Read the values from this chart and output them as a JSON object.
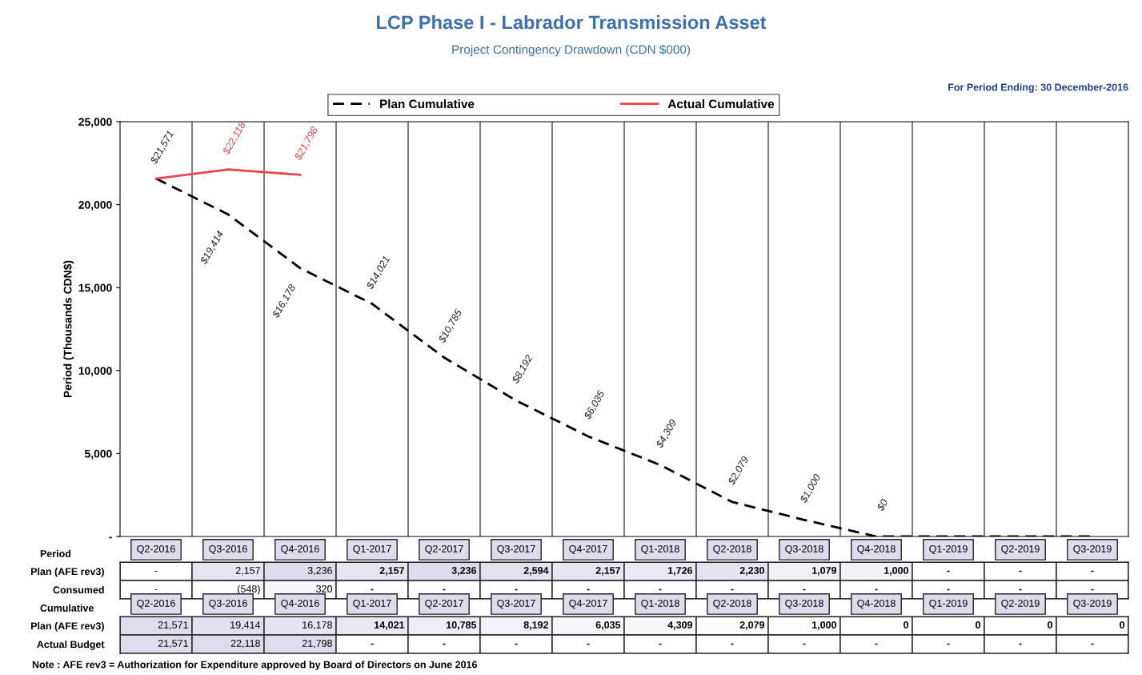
{
  "chart_data": [
    {
      "type": "line",
      "title": "LCP Phase I - Labrador Transmission Asset",
      "subtitle": "Project Contingency Drawdown (CDN $000)",
      "ylabel": "Period (Thousands CDN$)",
      "annotations": [
        "For Period Ending: 30 December-2016",
        "Note : AFE rev3 = Authorization for Expenditure approved by Board of Directors on June 2016"
      ],
      "categories": [
        null,
        null,
        null,
        null,
        null,
        null,
        null,
        null,
        null,
        null,
        null,
        null,
        null,
        null
      ],
      "series": [
        {
          "name": "Plan Cumulative",
          "color": "#000000",
          "line_style": "dashed",
          "values": [
            21571,
            19414,
            16178,
            14021,
            10785,
            8192,
            6035,
            4309,
            2079,
            1000,
            0,
            0,
            0,
            0
          ],
          "value_labels": [
            "$21,571",
            "$19,414",
            "$16,178",
            "$14,021",
            "$10,785",
            "$8,192",
            "$6,035",
            "$4,309",
            "$2,079",
            "$1,000",
            "$0",
            null,
            null,
            null
          ]
        },
        {
          "name": "Actual Cumulative",
          "color": "#f0404a",
          "line_style": "solid",
          "values": [
            21571,
            22118,
            21798,
            null,
            null,
            null,
            null,
            null,
            null,
            null,
            null,
            null,
            null,
            null
          ],
          "value_labels": [
            null,
            "$22,118",
            "$21,798",
            null,
            null,
            null,
            null,
            null,
            null,
            null,
            null,
            null,
            null,
            null
          ]
        }
      ],
      "ylim": [
        0,
        25000
      ],
      "yticks": [
        {
          "value": 0,
          "label": "-"
        },
        {
          "value": 5000,
          "label": "5,000"
        },
        {
          "value": 10000,
          "label": "10,000"
        },
        {
          "value": 15000,
          "label": "15,000"
        },
        {
          "value": 20000,
          "label": "20,000"
        },
        {
          "value": 25000,
          "label": "25,000"
        }
      ],
      "grid": "x",
      "legend": "top",
      "marker": "none",
      "tick_labels": "y"
    },
    {
      "type": "heatmap",
      "title": "Period",
      "categories": [
        "Q2-2016",
        "Q3-2016",
        "Q4-2016",
        "Q1-2017",
        "Q2-2017",
        "Q3-2017",
        "Q4-2017",
        "Q1-2018",
        "Q2-2018",
        "Q3-2018",
        "Q4-2018",
        "Q1-2019",
        "Q2-2019",
        "Q3-2019"
      ],
      "y_categories": [
        "Plan (AFE rev3)",
        "Consumed"
      ],
      "cells": [
        [
          null,
          2157,
          3236,
          2157,
          3236,
          2594,
          2157,
          1726,
          2230,
          1079,
          1000,
          null,
          null,
          null
        ],
        [
          null,
          -548,
          320,
          null,
          null,
          null,
          null,
          null,
          null,
          null,
          null,
          null,
          null,
          null
        ]
      ],
      "cell_labels": [
        [
          "-",
          "2,157",
          "3,236",
          "2,157",
          "3,236",
          "2,594",
          "2,157",
          "1,726",
          "2,230",
          "1,079",
          "1,000",
          "-",
          "-",
          "-"
        ],
        [
          "-",
          "(548)",
          "320",
          "-",
          "-",
          "-",
          "-",
          "-",
          "-",
          "-",
          "-",
          "-",
          "-",
          "-"
        ]
      ]
    },
    {
      "type": "heatmap",
      "title": "Cumulative",
      "categories": [
        "Q2-2016",
        "Q3-2016",
        "Q4-2016",
        "Q1-2017",
        "Q2-2017",
        "Q3-2017",
        "Q4-2017",
        "Q1-2018",
        "Q2-2018",
        "Q3-2018",
        "Q4-2018",
        "Q1-2019",
        "Q2-2019",
        "Q3-2019"
      ],
      "y_categories": [
        "Plan (AFE rev3)",
        "Actual Budget"
      ],
      "cells": [
        [
          21571,
          19414,
          16178,
          14021,
          10785,
          8192,
          6035,
          4309,
          2079,
          1000,
          0,
          0,
          0,
          0
        ],
        [
          21571,
          22118,
          21798,
          null,
          null,
          null,
          null,
          null,
          null,
          null,
          null,
          null,
          null,
          null
        ]
      ],
      "cell_labels": [
        [
          "21,571",
          "19,414",
          "16,178",
          "14,021",
          "10,785",
          "8,192",
          "6,035",
          "4,309",
          "2,079",
          "1,000",
          "0",
          "0",
          "0",
          "0"
        ],
        [
          "21,571",
          "22,118",
          "21,798",
          "-",
          "-",
          "-",
          "-",
          "-",
          "-",
          "-",
          "-",
          "-",
          "-",
          "-"
        ]
      ]
    }
  ]
}
